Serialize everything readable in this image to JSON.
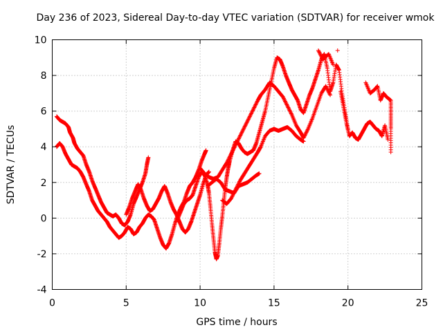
{
  "chart_data": {
    "type": "scatter",
    "title": "Day 236 of 2023, Sidereal Day-to-day VTEC variation (SDTVAR) for receiver wmok",
    "xlabel": "GPS time / hours",
    "ylabel": "SDTVAR / TECUs",
    "xlim": [
      0,
      25
    ],
    "ylim": [
      -4,
      10
    ],
    "x_ticks": [
      "0",
      "5",
      "10",
      "15",
      "20",
      "25"
    ],
    "y_ticks": [
      "-4",
      "-2",
      "0",
      "2",
      "4",
      "6",
      "8",
      "10"
    ],
    "grid": true,
    "marker": "+",
    "series": [
      {
        "name": "SDTVAR",
        "color": "#ff0000",
        "points": [
          [
            0.3,
            5.7
          ],
          [
            0.5,
            5.5
          ],
          [
            0.7,
            5.4
          ],
          [
            0.9,
            5.3
          ],
          [
            1.1,
            5.1
          ],
          [
            1.2,
            4.8
          ],
          [
            1.4,
            4.5
          ],
          [
            1.5,
            4.2
          ],
          [
            1.7,
            3.9
          ],
          [
            1.9,
            3.7
          ],
          [
            2.1,
            3.5
          ],
          [
            2.3,
            3.0
          ],
          [
            2.5,
            2.6
          ],
          [
            2.7,
            2.1
          ],
          [
            2.9,
            1.7
          ],
          [
            3.1,
            1.3
          ],
          [
            3.3,
            0.9
          ],
          [
            3.5,
            0.6
          ],
          [
            3.7,
            0.3
          ],
          [
            3.9,
            0.2
          ],
          [
            4.1,
            0.1
          ],
          [
            4.3,
            0.2
          ],
          [
            4.5,
            0.0
          ],
          [
            4.7,
            -0.3
          ],
          [
            4.9,
            -0.4
          ],
          [
            5.1,
            -0.2
          ],
          [
            5.3,
            0.2
          ],
          [
            5.5,
            0.8
          ],
          [
            5.7,
            1.2
          ],
          [
            5.9,
            1.6
          ],
          [
            6.1,
            2.0
          ],
          [
            6.3,
            2.5
          ],
          [
            6.4,
            3.0
          ],
          [
            6.5,
            3.4
          ],
          [
            0.3,
            4.0
          ],
          [
            0.5,
            4.2
          ],
          [
            0.7,
            4.0
          ],
          [
            0.9,
            3.6
          ],
          [
            1.1,
            3.3
          ],
          [
            1.3,
            3.0
          ],
          [
            1.5,
            2.9
          ],
          [
            1.7,
            2.8
          ],
          [
            1.9,
            2.6
          ],
          [
            2.1,
            2.3
          ],
          [
            2.3,
            1.9
          ],
          [
            2.5,
            1.5
          ],
          [
            2.7,
            1.0
          ],
          [
            2.9,
            0.7
          ],
          [
            3.1,
            0.4
          ],
          [
            3.3,
            0.2
          ],
          [
            3.5,
            0.0
          ],
          [
            3.7,
            -0.2
          ],
          [
            3.9,
            -0.5
          ],
          [
            4.1,
            -0.7
          ],
          [
            4.3,
            -0.9
          ],
          [
            4.5,
            -1.1
          ],
          [
            4.7,
            -1.0
          ],
          [
            4.9,
            -0.8
          ],
          [
            5.1,
            -0.5
          ],
          [
            5.3,
            -0.6
          ],
          [
            5.5,
            -0.9
          ],
          [
            5.7,
            -0.8
          ],
          [
            5.9,
            -0.5
          ],
          [
            6.1,
            -0.3
          ],
          [
            6.3,
            0.0
          ],
          [
            6.5,
            0.2
          ],
          [
            6.7,
            0.1
          ],
          [
            6.9,
            -0.1
          ],
          [
            7.1,
            -0.6
          ],
          [
            7.3,
            -1.1
          ],
          [
            7.5,
            -1.5
          ],
          [
            7.7,
            -1.7
          ],
          [
            7.9,
            -1.4
          ],
          [
            8.1,
            -0.9
          ],
          [
            8.3,
            -0.3
          ],
          [
            8.5,
            0.2
          ],
          [
            8.7,
            0.6
          ],
          [
            8.9,
            0.9
          ],
          [
            9.1,
            1.4
          ],
          [
            9.3,
            1.8
          ],
          [
            9.5,
            2.0
          ],
          [
            9.7,
            2.3
          ],
          [
            9.9,
            2.7
          ],
          [
            10.1,
            3.2
          ],
          [
            10.3,
            3.6
          ],
          [
            10.4,
            3.8
          ],
          [
            5.0,
            0.2
          ],
          [
            5.2,
            0.6
          ],
          [
            5.4,
            1.1
          ],
          [
            5.6,
            1.5
          ],
          [
            5.8,
            1.9
          ],
          [
            6.0,
            1.6
          ],
          [
            6.2,
            1.1
          ],
          [
            6.4,
            0.7
          ],
          [
            6.6,
            0.4
          ],
          [
            6.8,
            0.5
          ],
          [
            7.0,
            0.8
          ],
          [
            7.2,
            1.1
          ],
          [
            7.4,
            1.5
          ],
          [
            7.6,
            1.8
          ],
          [
            7.8,
            1.4
          ],
          [
            8.0,
            0.9
          ],
          [
            8.2,
            0.5
          ],
          [
            8.4,
            0.2
          ],
          [
            8.6,
            -0.2
          ],
          [
            8.8,
            -0.6
          ],
          [
            9.0,
            -0.8
          ],
          [
            9.2,
            -0.6
          ],
          [
            9.4,
            -0.2
          ],
          [
            9.6,
            0.3
          ],
          [
            9.8,
            0.8
          ],
          [
            10.0,
            1.3
          ],
          [
            10.2,
            1.9
          ],
          [
            10.4,
            2.4
          ],
          [
            10.6,
            2.6
          ],
          [
            8.5,
            0.0
          ],
          [
            8.7,
            0.4
          ],
          [
            8.9,
            0.8
          ],
          [
            9.1,
            1.0
          ],
          [
            9.3,
            1.1
          ],
          [
            9.5,
            1.3
          ],
          [
            9.7,
            1.8
          ],
          [
            9.9,
            2.3
          ],
          [
            10.1,
            2.6
          ],
          [
            10.3,
            2.4
          ],
          [
            10.5,
            1.9
          ],
          [
            10.6,
            1.4
          ],
          [
            10.7,
            0.6
          ],
          [
            10.8,
            -0.3
          ],
          [
            10.9,
            -1.1
          ],
          [
            11.0,
            -1.9
          ],
          [
            11.1,
            -2.3
          ],
          [
            11.2,
            -2.1
          ],
          [
            11.3,
            -1.4
          ],
          [
            11.4,
            -0.6
          ],
          [
            11.5,
            0.1
          ],
          [
            11.6,
            0.9
          ],
          [
            11.7,
            1.7
          ],
          [
            11.8,
            2.3
          ],
          [
            11.9,
            2.8
          ],
          [
            12.0,
            3.2
          ],
          [
            12.2,
            3.8
          ],
          [
            12.4,
            4.3
          ],
          [
            12.6,
            4.2
          ],
          [
            12.8,
            3.9
          ],
          [
            13.0,
            3.7
          ],
          [
            13.2,
            3.6
          ],
          [
            13.4,
            3.7
          ],
          [
            13.6,
            3.8
          ],
          [
            13.8,
            4.2
          ],
          [
            14.0,
            4.8
          ],
          [
            14.2,
            5.4
          ],
          [
            14.4,
            6.0
          ],
          [
            14.6,
            6.8
          ],
          [
            14.8,
            7.6
          ],
          [
            15.0,
            8.4
          ],
          [
            15.2,
            9.0
          ],
          [
            15.4,
            8.9
          ],
          [
            15.6,
            8.5
          ],
          [
            15.8,
            8.0
          ],
          [
            16.0,
            7.6
          ],
          [
            16.2,
            7.2
          ],
          [
            16.4,
            6.9
          ],
          [
            16.6,
            6.6
          ],
          [
            16.8,
            6.1
          ],
          [
            17.0,
            5.9
          ],
          [
            17.2,
            6.4
          ],
          [
            17.4,
            6.9
          ],
          [
            17.6,
            7.3
          ],
          [
            17.8,
            7.8
          ],
          [
            18.0,
            8.3
          ],
          [
            18.2,
            8.9
          ],
          [
            18.4,
            9.2
          ],
          [
            18.6,
            8.4
          ],
          [
            18.8,
            7.1
          ],
          [
            19.0,
            7.6
          ],
          [
            19.2,
            8.6
          ],
          [
            19.4,
            8.3
          ],
          [
            19.6,
            7.0
          ],
          [
            19.8,
            6.0
          ],
          [
            20.0,
            5.0
          ],
          [
            10.0,
            2.8
          ],
          [
            10.3,
            2.5
          ],
          [
            10.6,
            2.3
          ],
          [
            10.9,
            2.2
          ],
          [
            11.2,
            2.3
          ],
          [
            11.5,
            2.7
          ],
          [
            11.8,
            3.1
          ],
          [
            12.1,
            3.6
          ],
          [
            12.4,
            4.1
          ],
          [
            12.7,
            4.6
          ],
          [
            13.0,
            5.1
          ],
          [
            13.3,
            5.6
          ],
          [
            13.6,
            6.1
          ],
          [
            13.9,
            6.6
          ],
          [
            14.1,
            6.9
          ],
          [
            14.4,
            7.2
          ],
          [
            14.7,
            7.6
          ],
          [
            15.0,
            7.4
          ],
          [
            15.3,
            7.1
          ],
          [
            15.6,
            6.8
          ],
          [
            15.9,
            6.3
          ],
          [
            16.2,
            5.8
          ],
          [
            16.5,
            5.2
          ],
          [
            16.8,
            4.8
          ],
          [
            17.0,
            4.5
          ],
          [
            17.3,
            5.0
          ],
          [
            17.6,
            5.6
          ],
          [
            17.9,
            6.3
          ],
          [
            18.2,
            7.0
          ],
          [
            18.5,
            7.4
          ],
          [
            18.8,
            6.9
          ],
          [
            10.5,
            1.8
          ],
          [
            10.8,
            2.0
          ],
          [
            11.1,
            2.2
          ],
          [
            11.4,
            2.0
          ],
          [
            11.7,
            1.6
          ],
          [
            12.0,
            1.5
          ],
          [
            12.3,
            1.4
          ],
          [
            12.6,
            1.8
          ],
          [
            12.9,
            1.9
          ],
          [
            13.2,
            2.0
          ],
          [
            13.5,
            2.2
          ],
          [
            13.8,
            2.4
          ],
          [
            14.0,
            2.5
          ],
          [
            11.5,
            1.0
          ],
          [
            11.8,
            0.8
          ],
          [
            12.1,
            1.1
          ],
          [
            12.4,
            1.6
          ],
          [
            12.7,
            2.1
          ],
          [
            13.0,
            2.5
          ],
          [
            13.3,
            2.9
          ],
          [
            13.6,
            3.3
          ],
          [
            13.9,
            3.7
          ],
          [
            14.1,
            4.0
          ],
          [
            14.4,
            4.6
          ],
          [
            14.7,
            4.9
          ],
          [
            15.0,
            5.0
          ],
          [
            15.3,
            4.9
          ],
          [
            15.6,
            5.0
          ],
          [
            15.9,
            5.1
          ],
          [
            16.2,
            4.9
          ],
          [
            16.5,
            4.6
          ],
          [
            16.8,
            4.4
          ],
          [
            17.0,
            4.3
          ],
          [
            19.3,
            9.4
          ],
          [
            19.5,
            7.1
          ],
          [
            19.7,
            6.2
          ],
          [
            19.9,
            5.3
          ],
          [
            20.1,
            4.6
          ],
          [
            20.3,
            4.8
          ],
          [
            20.5,
            4.5
          ],
          [
            20.7,
            4.4
          ],
          [
            20.9,
            4.7
          ],
          [
            21.1,
            5.0
          ],
          [
            21.3,
            5.3
          ],
          [
            21.5,
            5.4
          ],
          [
            21.7,
            5.2
          ],
          [
            21.9,
            5.0
          ],
          [
            22.1,
            4.9
          ],
          [
            22.3,
            4.6
          ],
          [
            22.5,
            5.2
          ],
          [
            22.7,
            4.4
          ],
          [
            18.0,
            9.4
          ],
          [
            18.3,
            8.9
          ],
          [
            18.7,
            9.2
          ],
          [
            19.0,
            8.6
          ],
          [
            21.2,
            7.6
          ],
          [
            21.5,
            7.0
          ],
          [
            21.8,
            7.2
          ],
          [
            22.0,
            7.4
          ],
          [
            22.2,
            6.6
          ],
          [
            22.4,
            7.0
          ],
          [
            22.6,
            6.8
          ],
          [
            22.9,
            6.6
          ],
          [
            22.9,
            5.8
          ],
          [
            22.9,
            5.0
          ],
          [
            22.9,
            3.7
          ]
        ]
      }
    ]
  }
}
